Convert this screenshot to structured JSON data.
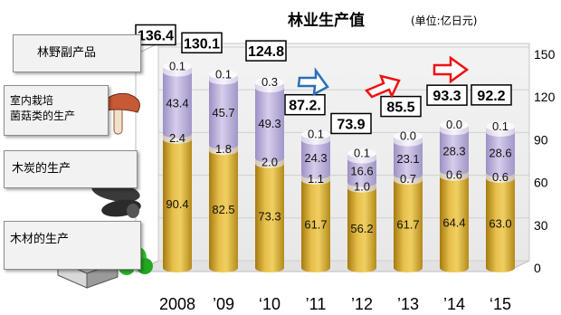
{
  "chart_data": {
    "type": "bar",
    "title": "林业生产值",
    "unit": "(单位:亿日元)",
    "categories": [
      "2008",
      "’09",
      "‘10",
      "’11",
      "’12",
      "’13",
      "’14",
      "‘15"
    ],
    "series": [
      {
        "name": "木材的生产",
        "values": [
          90.4,
          82.5,
          73.3,
          61.7,
          56.2,
          61.7,
          64.4,
          63.0
        ]
      },
      {
        "name": "木炭的生产",
        "values": [
          2.4,
          1.8,
          2.0,
          1.1,
          1.0,
          0.7,
          0.6,
          0.6
        ]
      },
      {
        "name": "室内栽培菌菇类的生产",
        "values": [
          43.4,
          45.7,
          49.3,
          24.3,
          16.6,
          23.1,
          28.3,
          28.6
        ]
      },
      {
        "name": "林野副产品",
        "values": [
          0.1,
          0.1,
          0.3,
          0.1,
          0.1,
          0.0,
          0.0,
          0.1
        ]
      }
    ],
    "totals": [
      "136.4",
      "130.1",
      "124.8",
      "87.2.",
      "73.9",
      "85.5",
      "93.3",
      "92.2"
    ],
    "y_ticks": [
      "0",
      "30",
      "60",
      "90",
      "120",
      "150"
    ],
    "ylim": [
      0,
      150
    ],
    "legend_labels": {
      "byproducts": "林野副产品",
      "mushroom_line1": "室内栽培",
      "mushroom_line2": "菌菇类的生产",
      "charcoal": "木炭的生产",
      "timber": "木材的生产"
    },
    "colors": {
      "timber": "#d9aa2a",
      "charcoal": "#ede5d8",
      "mushroom": "#c2b7dc",
      "byproducts": "#ece6f2",
      "arrow_blue": "#2a6fb6",
      "arrow_red": "#ee1111"
    }
  }
}
